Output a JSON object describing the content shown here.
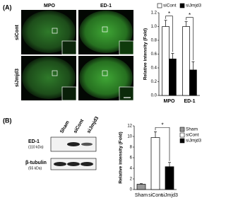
{
  "panel_a": {
    "label": "(A)",
    "columns": [
      "MPO",
      "ED-1"
    ],
    "rows": [
      "siCont",
      "siJmjd3"
    ]
  },
  "panel_b": {
    "label": "(B)",
    "lanes": [
      "Sham",
      "siCont",
      "siJmjd3"
    ],
    "blots": [
      {
        "name": "ED-1",
        "size": "(110 kDa)"
      },
      {
        "name": "β-tubulin",
        "size": "(55 kDa)"
      }
    ]
  },
  "chart_data": [
    {
      "type": "bar",
      "categories": [
        "MPO",
        "ED-1"
      ],
      "series": [
        {
          "name": "siCont",
          "color": "#ffffff",
          "values": [
            1.0,
            1.0
          ],
          "errors": [
            0.09,
            0.07
          ]
        },
        {
          "name": "siJmjd3",
          "color": "#000000",
          "values": [
            0.53,
            0.37
          ],
          "errors": [
            0.08,
            0.12
          ]
        }
      ],
      "y_label": "Relative intensity (Fold)",
      "ylim": [
        0,
        1.2
      ],
      "yticks": [
        {
          "value": 0,
          "label": "0.0"
        },
        0.2,
        0.4,
        0.6,
        0.8,
        {
          "value": 1,
          "label": "1.0"
        },
        1.2
      ],
      "legend": "top",
      "significance": [
        "*",
        "*"
      ]
    },
    {
      "type": "bar",
      "categories": [
        "Sham",
        "siCont",
        "siJmjd3"
      ],
      "values": [
        1,
        9.8,
        4.3
      ],
      "errors": [
        0.1,
        1.1,
        0.8
      ],
      "colors": [
        "#999999",
        "#ffffff",
        "#000000"
      ],
      "y_label": "Relative intensity (Fold)",
      "ylim": [
        0,
        12
      ],
      "yticks": [
        0,
        2,
        4,
        6,
        8,
        10,
        12
      ],
      "legend": "right",
      "significance": [
        "*"
      ]
    }
  ]
}
